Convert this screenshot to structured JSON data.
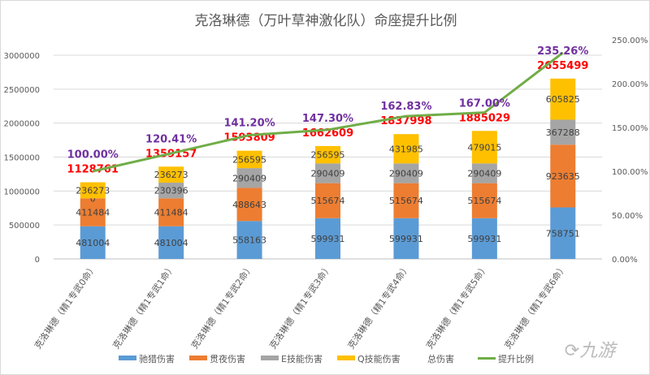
{
  "chart_data": {
    "type": "bar",
    "title": "克洛琳德（万叶草神激化队）命座提升比例",
    "categories": [
      "克洛琳德（精1专武0命）",
      "克洛琳德（精1专武1命）",
      "克洛琳德（精1专武2命）",
      "克洛琳德（精1专武3命）",
      "克洛琳德（精1专武4命）",
      "克洛琳德（精1专武5命）",
      "克洛琳德（精1专武6命）"
    ],
    "stacked": true,
    "series": [
      {
        "name": "驰猎伤害",
        "color": "#5b9bd5",
        "values": [
          481004,
          481004,
          558163,
          599931,
          599931,
          599931,
          758751
        ]
      },
      {
        "name": "贯夜伤害",
        "color": "#ed7d31",
        "values": [
          411484,
          411484,
          488643,
          515674,
          515674,
          515674,
          923635
        ]
      },
      {
        "name": "E技能伤害",
        "color": "#a5a5a5",
        "values": [
          0,
          230396,
          290409,
          290409,
          290409,
          290409,
          367288
        ]
      },
      {
        "name": "Q技能伤害",
        "color": "#ffc000",
        "values": [
          236273,
          236273,
          256595,
          256595,
          431985,
          479015,
          605825
        ]
      }
    ],
    "total": {
      "name": "总伤害",
      "label_color": "#ff0000",
      "values": [
        1128761,
        1359157,
        1593809,
        1662609,
        1837998,
        1885029,
        2655499
      ]
    },
    "ratio": {
      "name": "提升比例",
      "color": "#70ad47",
      "label_color": "#7030a0",
      "values": [
        100.0,
        120.41,
        141.2,
        147.3,
        162.83,
        167.0,
        235.26
      ],
      "labels": [
        "100.00%",
        "120.41%",
        "141.20%",
        "147.30%",
        "162.83%",
        "167.00%",
        "235.26%"
      ]
    },
    "y_left": {
      "min": 0,
      "max": 3000000,
      "ticks": [
        "0",
        "500000",
        "1000000",
        "1500000",
        "2000000",
        "2500000",
        "3000000"
      ]
    },
    "y_right": {
      "min": 0,
      "max": 250,
      "ticks": [
        "0.00%",
        "50.00%",
        "100.00%",
        "150.00%",
        "200.00%",
        "250.00%"
      ]
    },
    "grid": true,
    "legend": "bottom"
  },
  "watermark": "九游"
}
